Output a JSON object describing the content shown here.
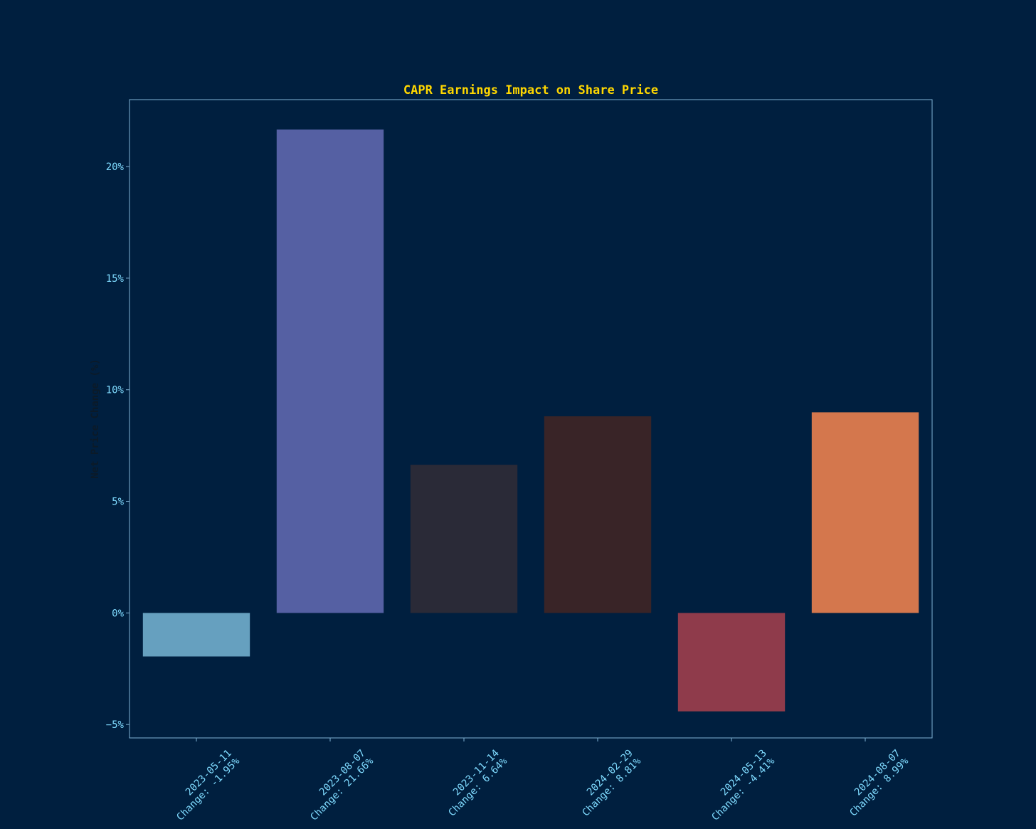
{
  "colors": {
    "background": "#001f3f",
    "title": "#ffd700",
    "tick_text": "#7fdbff",
    "axis_label": "#0b1a28",
    "frame": "#7fb3d5"
  },
  "chart_data": {
    "type": "bar",
    "title": "CAPR Earnings Impact on Share Price",
    "xlabel": "",
    "ylabel": "Net Price Change (%)",
    "ylim": [
      -5.6,
      23.0
    ],
    "yticks": [
      -5,
      0,
      5,
      10,
      15,
      20
    ],
    "ytick_labels": [
      "−5%",
      "0%",
      "5%",
      "10%",
      "15%",
      "20%"
    ],
    "categories": [
      {
        "date": "2023-05-11",
        "change": "Change: -1.95%"
      },
      {
        "date": "2023-08-07",
        "change": "Change: 21.66%"
      },
      {
        "date": "2023-11-14",
        "change": "Change: 6.64%"
      },
      {
        "date": "2024-02-29",
        "change": "Change: 8.81%"
      },
      {
        "date": "2024-05-13",
        "change": "Change: -4.41%"
      },
      {
        "date": "2024-08-07",
        "change": "Change: 8.99%"
      }
    ],
    "values": [
      -1.95,
      21.66,
      6.64,
      8.81,
      -4.41,
      8.99
    ],
    "bar_colors": [
      "#66a0bf",
      "#5560a3",
      "#2a2a37",
      "#392427",
      "#8f3b4b",
      "#d4774d"
    ],
    "grid": false,
    "legend": "none"
  }
}
